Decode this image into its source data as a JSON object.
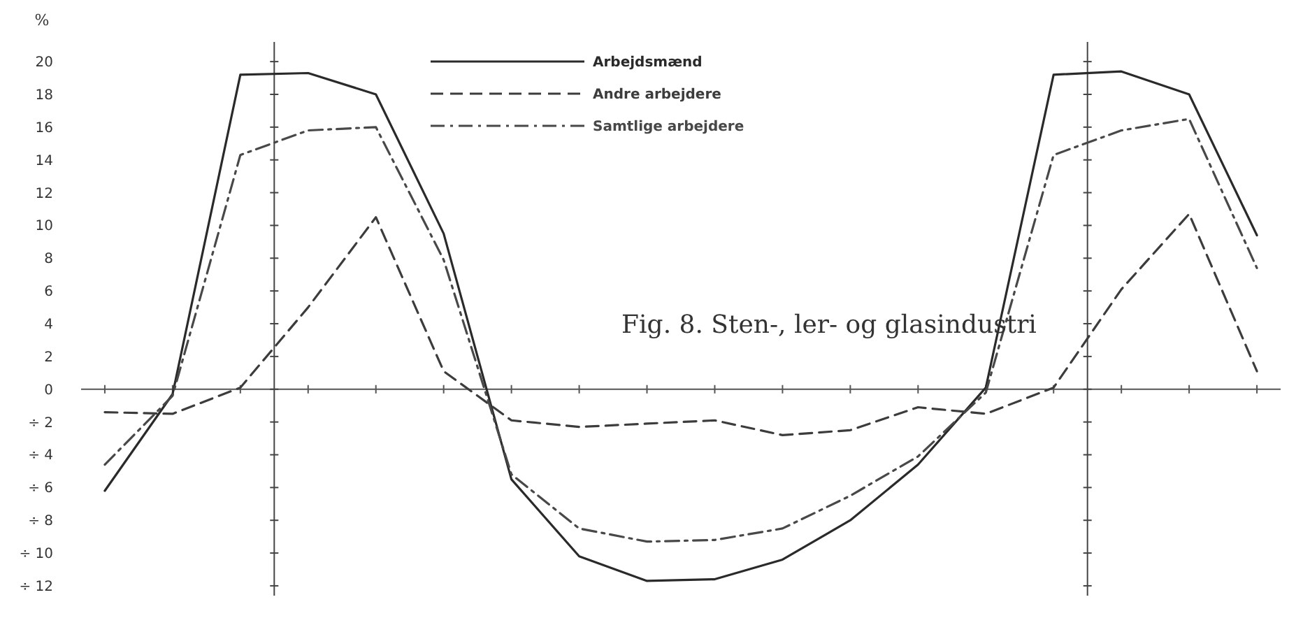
{
  "chart_data": {
    "type": "line",
    "title": "Fig. 8. Sten-, ler- og glasindustri",
    "ylabel": "%",
    "categories": [
      null,
      null,
      null,
      null,
      null,
      null,
      null,
      null,
      null,
      null,
      null,
      null,
      null,
      null,
      null,
      null,
      null,
      null
    ],
    "ylim": [
      -12.6,
      21.2
    ],
    "yticks": [
      {
        "value": -12,
        "label": "÷ 12"
      },
      {
        "value": -10,
        "label": "÷ 10"
      },
      {
        "value": -8,
        "label": "÷ 8"
      },
      {
        "value": -6,
        "label": "÷ 6"
      },
      {
        "value": -4,
        "label": "÷ 4"
      },
      {
        "value": -2,
        "label": "÷ 2"
      },
      {
        "value": 0,
        "label": "0"
      },
      {
        "value": 2,
        "label": "2"
      },
      {
        "value": 4,
        "label": "4"
      },
      {
        "value": 6,
        "label": "6"
      },
      {
        "value": 8,
        "label": "8"
      },
      {
        "value": 10,
        "label": "10"
      },
      {
        "value": 12,
        "label": "12"
      },
      {
        "value": 14,
        "label": "14"
      },
      {
        "value": 16,
        "label": "16"
      },
      {
        "value": 18,
        "label": "18"
      },
      {
        "value": 20,
        "label": "20"
      }
    ],
    "grid": false,
    "legend": "top",
    "series": [
      {
        "name": "Arbejdsmænd",
        "color": "#2a2a2a",
        "line_style": "solid",
        "values": [
          -6.2,
          -0.3,
          19.2,
          19.3,
          18.0,
          9.5,
          -5.5,
          -10.2,
          -11.7,
          -11.6,
          -10.4,
          -8.0,
          -4.6,
          0.1,
          19.2,
          19.4,
          18.0,
          9.4
        ]
      },
      {
        "name": "Andre arbejdere",
        "color": "#3c3c3c",
        "line_style": "dashed",
        "values": [
          -1.4,
          -1.5,
          0.1,
          5.0,
          10.5,
          1.1,
          -1.9,
          -2.3,
          -2.1,
          -1.9,
          -2.8,
          -2.5,
          -1.1,
          -1.5,
          0.1,
          6.1,
          10.7,
          1.1
        ]
      },
      {
        "name": "Samtlige arbejdere",
        "color": "#484848",
        "line_style": "dashdot",
        "values": [
          -4.6,
          -0.4,
          14.3,
          15.8,
          16.0,
          7.9,
          -5.2,
          -8.5,
          -9.3,
          -9.2,
          -8.5,
          -6.5,
          -4.1,
          -0.2,
          14.3,
          15.8,
          16.5,
          7.4
        ]
      }
    ]
  }
}
